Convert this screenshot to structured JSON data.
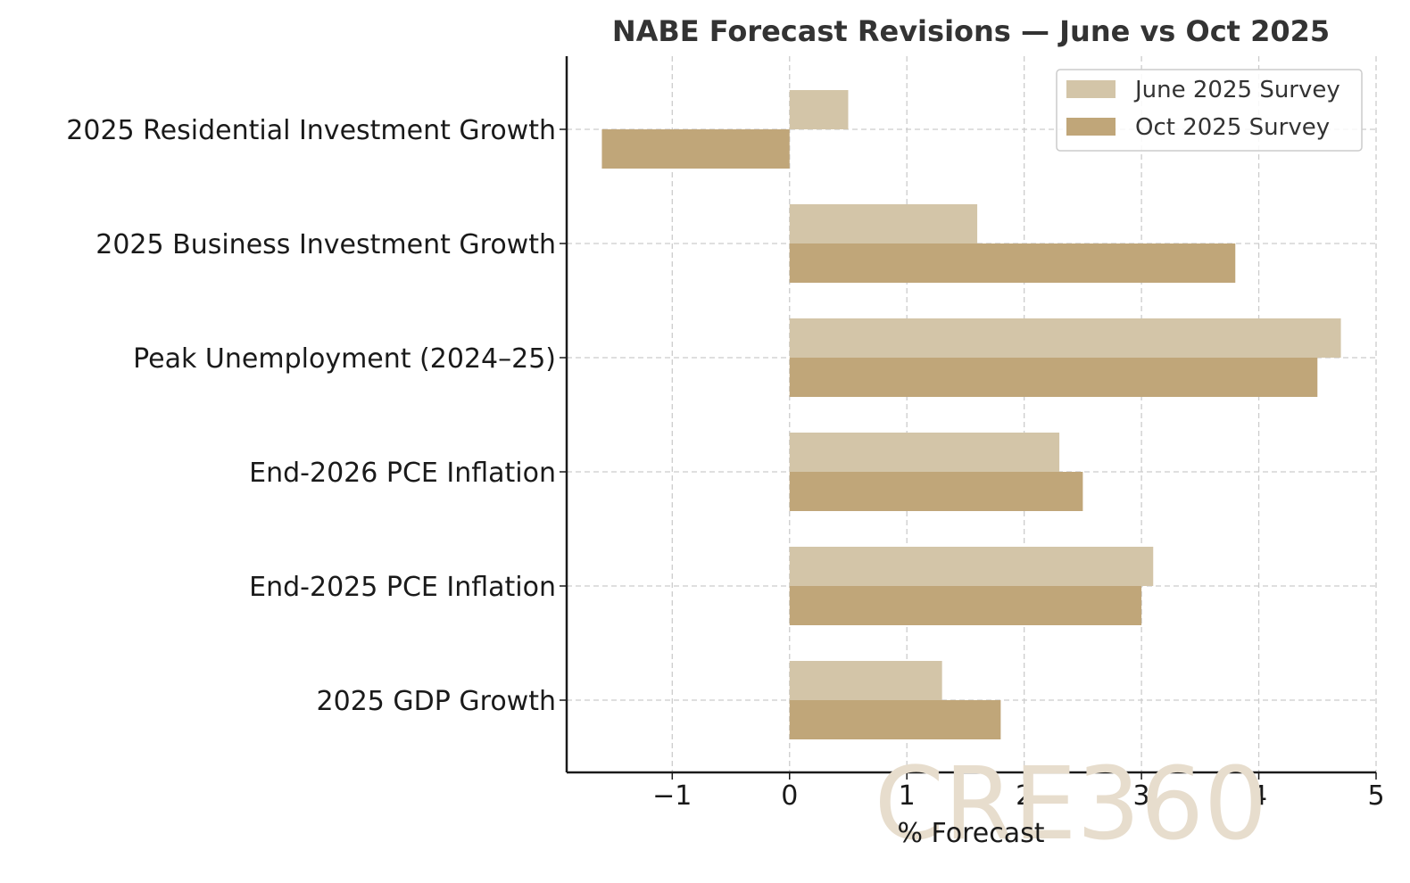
{
  "chart_data": {
    "type": "bar",
    "orientation": "horizontal",
    "title": "NABE Forecast Revisions — June vs Oct 2025",
    "xlabel": "% Forecast",
    "ylabel": "",
    "categories": [
      "2025 GDP Growth",
      "End-2025 PCE Inflation",
      "End-2026 PCE Inflation",
      "Peak Unemployment (2024–25)",
      "2025 Business Investment Growth",
      "2025 Residential Investment Growth"
    ],
    "series": [
      {
        "name": "June 2025 Survey",
        "color": "#d3c5a8",
        "values": [
          1.3,
          3.1,
          2.3,
          4.7,
          1.6,
          0.5
        ]
      },
      {
        "name": "Oct 2025 Survey",
        "color": "#c0a679",
        "values": [
          1.8,
          3.0,
          2.5,
          4.5,
          3.8,
          -1.6
        ]
      }
    ],
    "xlim": [
      -1.9,
      5.0
    ],
    "xticks": [
      -1,
      0,
      1,
      2,
      3,
      4,
      5
    ],
    "xtick_labels": [
      "−1",
      "0",
      "1",
      "2",
      "3",
      "4",
      "5"
    ],
    "grid": true,
    "legend_position": "top-right",
    "watermark": "CRE360"
  }
}
